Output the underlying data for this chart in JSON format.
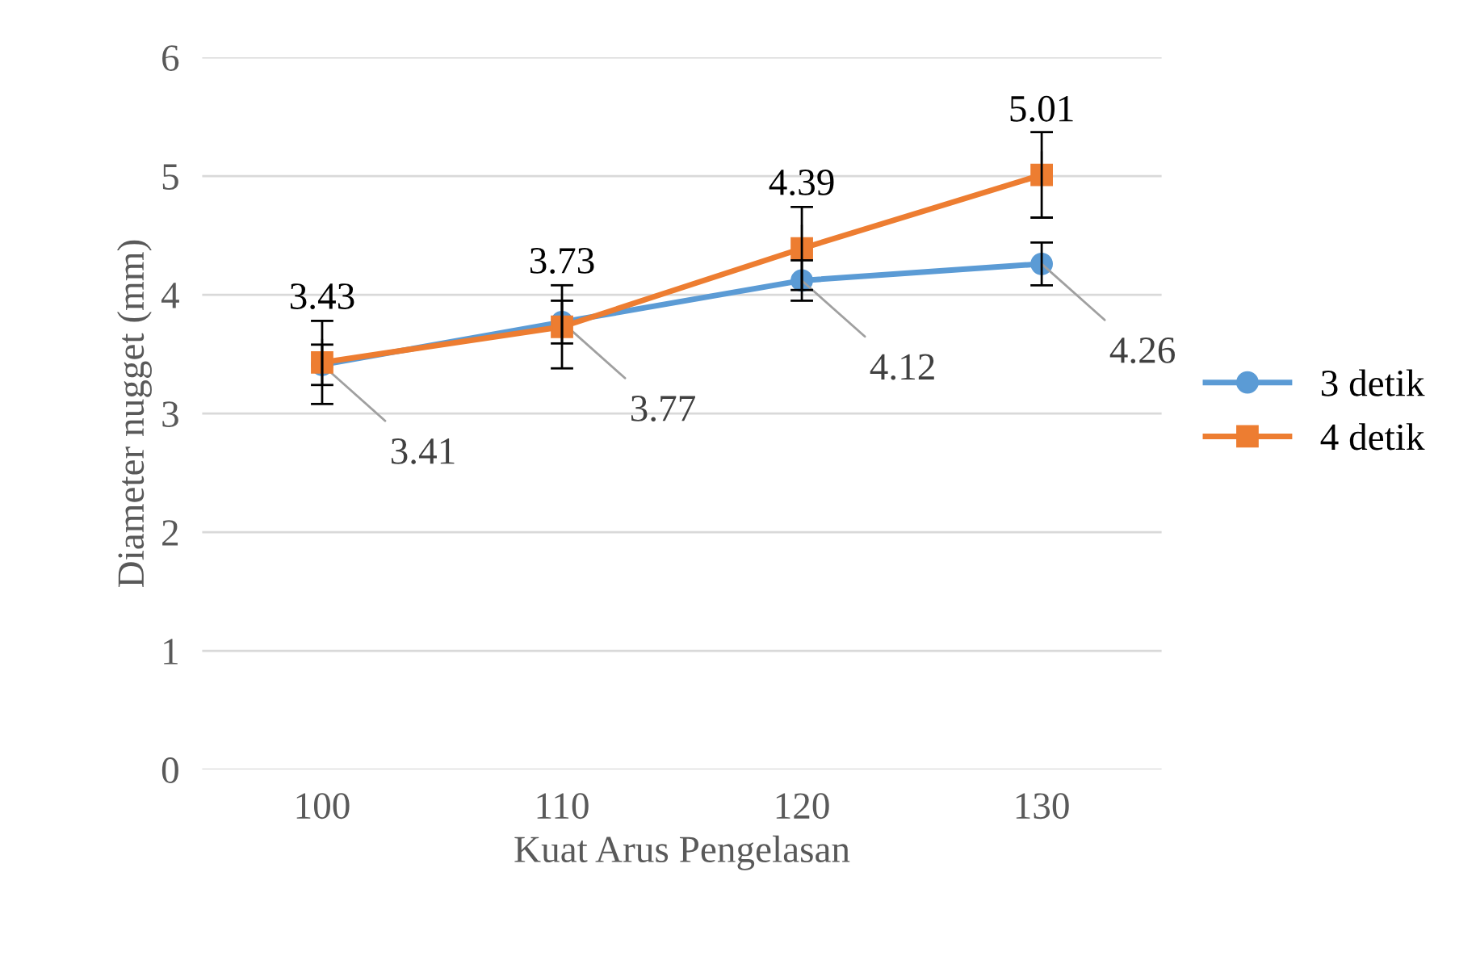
{
  "chart_data": {
    "type": "line",
    "xlabel": "Kuat Arus Pengelasan",
    "ylabel": "Diameter nugget (mm)",
    "categories": [
      "100",
      "110",
      "120",
      "130"
    ],
    "series": [
      {
        "name": "3 detik",
        "color": "#5b9bd5",
        "values": [
          3.41,
          3.77,
          4.12,
          4.26
        ],
        "errors": [
          0.17,
          0.18,
          0.17,
          0.18
        ],
        "marker": "circle"
      },
      {
        "name": "4 detik",
        "color": "#ed7d31",
        "values": [
          3.43,
          3.73,
          4.39,
          5.01
        ],
        "errors": [
          0.35,
          0.35,
          0.35,
          0.36
        ],
        "marker": "square"
      }
    ],
    "ylim": [
      0,
      6
    ],
    "yticks": [
      0,
      1,
      2,
      3,
      4,
      5,
      6
    ],
    "grid": "y",
    "legend": "right",
    "data_labels": true,
    "line_style": "solid"
  }
}
